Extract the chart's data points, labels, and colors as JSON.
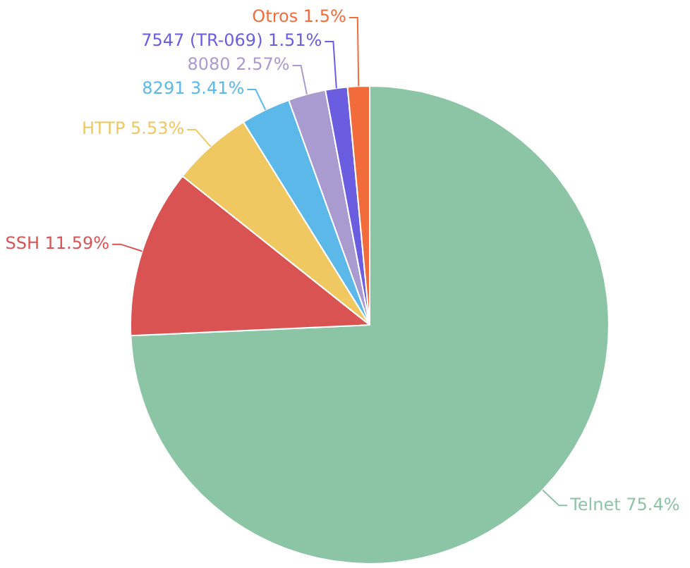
{
  "chart_data": {
    "type": "pie",
    "categories": [
      "Telnet",
      "SSH",
      "HTTP",
      "8291",
      "8080",
      "7547 (TR-069)",
      "Otros"
    ],
    "values": [
      75.4,
      11.59,
      5.53,
      3.41,
      2.57,
      1.51,
      1.5
    ],
    "value_labels": [
      "75.4%",
      "11.59%",
      "5.53%",
      "3.41%",
      "2.57%",
      "1.51%",
      "1.5%"
    ],
    "colors": [
      "#8cc5a6",
      "#d95353",
      "#efc862",
      "#5bb8e8",
      "#a99bd0",
      "#6a5de0",
      "#f26b3a"
    ],
    "legend": false
  }
}
